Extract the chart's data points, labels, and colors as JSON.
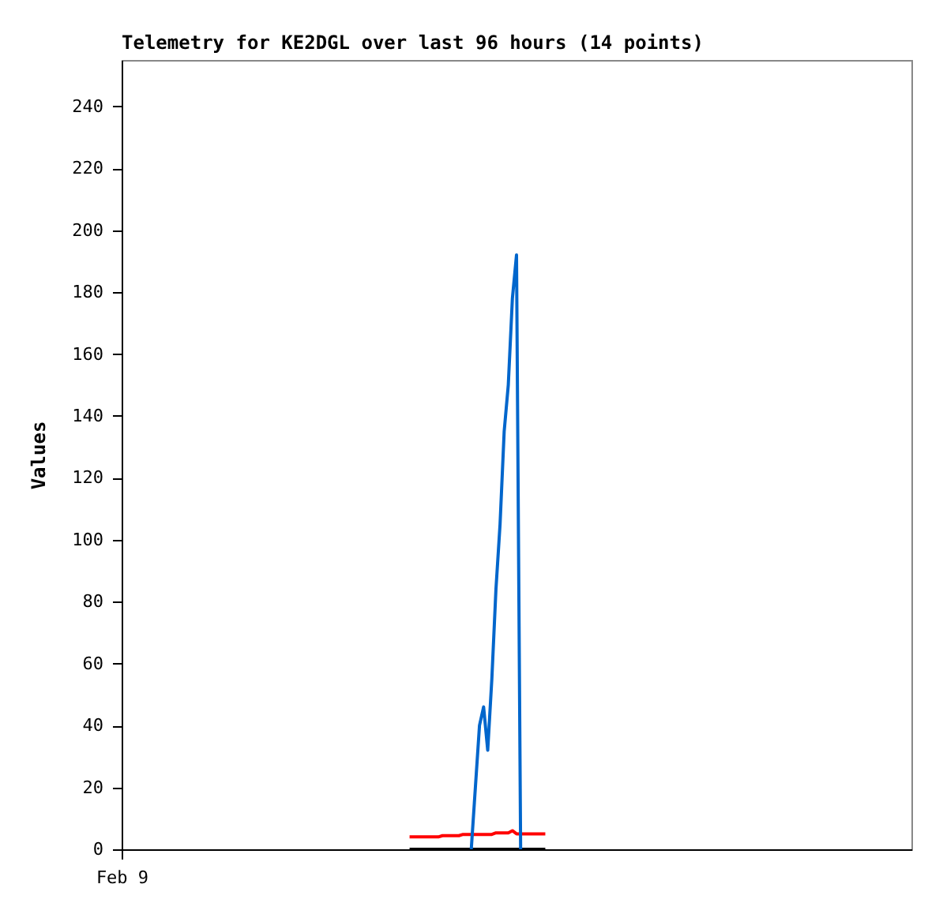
{
  "chart_data": {
    "type": "line",
    "title": "Telemetry for KE2DGL over last 96 hours (14 points)",
    "ylabel": "Values",
    "categories": [
      "Feb 9",
      null,
      null,
      null,
      null,
      null,
      null,
      null,
      null,
      null,
      null,
      null,
      null,
      null,
      null,
      null,
      null,
      null,
      null,
      null,
      null,
      null,
      null,
      null,
      null,
      null,
      null,
      null,
      null,
      null,
      null,
      null,
      null,
      null,
      null,
      null,
      null,
      null,
      null,
      null,
      null,
      null,
      null,
      null,
      null,
      null,
      null,
      null,
      null,
      null,
      null,
      null,
      null,
      null,
      null,
      null,
      null,
      null,
      null,
      null,
      null,
      null,
      null,
      null,
      null,
      null,
      null,
      null,
      null,
      null,
      null,
      null,
      null,
      null,
      null,
      null,
      null,
      null,
      null,
      null,
      null,
      null,
      null,
      null,
      null,
      null,
      null,
      null,
      null,
      null,
      null,
      null,
      null,
      null,
      null,
      null,
      null,
      null,
      null,
      null,
      null,
      null,
      null,
      null,
      null,
      null,
      null,
      null,
      null,
      null,
      null,
      null,
      null,
      null,
      null,
      null,
      null,
      null,
      null,
      null,
      null,
      null,
      null,
      null,
      null,
      null,
      null,
      null,
      null,
      null,
      null,
      null,
      null,
      null,
      null,
      null,
      null,
      null,
      null,
      null,
      null,
      null,
      null,
      null,
      null,
      null,
      null,
      null,
      null,
      null,
      null,
      null,
      null,
      null,
      null,
      null,
      null,
      null,
      null,
      null,
      null,
      null,
      null,
      null,
      null,
      null,
      null,
      null,
      null,
      null,
      null,
      null,
      null,
      null,
      null,
      null,
      null,
      null,
      null,
      null,
      null,
      null,
      null,
      null,
      null,
      null,
      null,
      null,
      null,
      null,
      null,
      null,
      null
    ],
    "ylim": [
      0,
      255
    ],
    "yticks": [
      0,
      20,
      40,
      60,
      80,
      100,
      120,
      140,
      160,
      180,
      200,
      220,
      240
    ],
    "grid": false,
    "line_style": "solid",
    "marker": "none",
    "series": [
      {
        "color": "#000000",
        "values": [
          null,
          null,
          null,
          null,
          null,
          null,
          null,
          null,
          null,
          null,
          null,
          null,
          null,
          null,
          null,
          null,
          null,
          null,
          null,
          null,
          null,
          null,
          null,
          null,
          null,
          null,
          null,
          null,
          null,
          null,
          null,
          null,
          null,
          null,
          null,
          null,
          null,
          null,
          null,
          null,
          null,
          null,
          null,
          null,
          null,
          null,
          null,
          null,
          null,
          null,
          null,
          null,
          null,
          null,
          null,
          null,
          null,
          null,
          null,
          null,
          null,
          null,
          null,
          null,
          null,
          null,
          null,
          null,
          null,
          null,
          0,
          0,
          0,
          0,
          0,
          0,
          0,
          0,
          0,
          0,
          0,
          0,
          0,
          0,
          0,
          0,
          0,
          0,
          0,
          0,
          0,
          0,
          0,
          0,
          0,
          0,
          0,
          0,
          0,
          0,
          0,
          0,
          0,
          0,
          null,
          null,
          null,
          null,
          null,
          null,
          null,
          null,
          null,
          null,
          null,
          null,
          null,
          null,
          null,
          null,
          null,
          null,
          null,
          null,
          null,
          null,
          null,
          null,
          null,
          null,
          null,
          null,
          null,
          null,
          null,
          null,
          null,
          null,
          null,
          null,
          null,
          null,
          null,
          null,
          null,
          null,
          null,
          null,
          null,
          null,
          null,
          null,
          null,
          null,
          null,
          null,
          null,
          null,
          null,
          null,
          null,
          null,
          null,
          null,
          null,
          null,
          null,
          null,
          null,
          null,
          null,
          null,
          null,
          null,
          null,
          null,
          null,
          null,
          null,
          null,
          null,
          null,
          null,
          null,
          null,
          null,
          null,
          null,
          null,
          null,
          null,
          null,
          null
        ]
      },
      {
        "color": "#ff0000",
        "values": [
          null,
          null,
          null,
          null,
          null,
          null,
          null,
          null,
          null,
          null,
          null,
          null,
          null,
          null,
          null,
          null,
          null,
          null,
          null,
          null,
          null,
          null,
          null,
          null,
          null,
          null,
          null,
          null,
          null,
          null,
          null,
          null,
          null,
          null,
          null,
          null,
          null,
          null,
          null,
          null,
          null,
          null,
          null,
          null,
          null,
          null,
          null,
          null,
          null,
          null,
          null,
          null,
          null,
          null,
          null,
          null,
          null,
          null,
          null,
          null,
          null,
          null,
          null,
          null,
          null,
          null,
          null,
          null,
          null,
          null,
          4,
          4,
          4,
          4,
          4,
          4,
          4,
          4,
          4.4,
          4.4,
          4.4,
          4.4,
          4.4,
          4.8,
          4.8,
          4.8,
          4.8,
          4.8,
          4.8,
          4.8,
          4.8,
          5.3,
          5.3,
          5.3,
          5.3,
          6,
          5,
          5,
          5,
          5,
          5,
          5,
          5,
          5,
          null,
          null,
          null,
          null,
          null,
          null,
          null,
          null,
          null,
          null,
          null,
          null,
          null,
          null,
          null,
          null,
          null,
          null,
          null,
          null,
          null,
          null,
          null,
          null,
          null,
          null,
          null,
          null,
          null,
          null,
          null,
          null,
          null,
          null,
          null,
          null,
          null,
          null,
          null,
          null,
          null,
          null,
          null,
          null,
          null,
          null,
          null,
          null,
          null,
          null,
          null,
          null,
          null,
          null,
          null,
          null,
          null,
          null,
          null,
          null,
          null,
          null,
          null,
          null,
          null,
          null,
          null,
          null,
          null,
          null,
          null,
          null,
          null,
          null,
          null,
          null,
          null,
          null,
          null,
          null,
          null,
          null,
          null,
          null,
          null,
          null,
          null,
          null,
          null
        ]
      },
      {
        "color": "#0066cc",
        "values": [
          null,
          null,
          null,
          null,
          null,
          null,
          null,
          null,
          null,
          null,
          null,
          null,
          null,
          null,
          null,
          null,
          null,
          null,
          null,
          null,
          null,
          null,
          null,
          null,
          null,
          null,
          null,
          null,
          null,
          null,
          null,
          null,
          null,
          null,
          null,
          null,
          null,
          null,
          null,
          null,
          null,
          null,
          null,
          null,
          null,
          null,
          null,
          null,
          null,
          null,
          null,
          null,
          null,
          null,
          null,
          null,
          null,
          null,
          null,
          null,
          null,
          null,
          null,
          null,
          null,
          null,
          null,
          null,
          null,
          null,
          null,
          null,
          null,
          null,
          null,
          null,
          null,
          null,
          null,
          null,
          null,
          null,
          null,
          null,
          null,
          0,
          20,
          40,
          46,
          32,
          55,
          84,
          105,
          135,
          150,
          178,
          192,
          0,
          null,
          null,
          null,
          null,
          null,
          null,
          null,
          null,
          null,
          null,
          null,
          null,
          null,
          null,
          null,
          null,
          null,
          null,
          null,
          null,
          null,
          null,
          null,
          null,
          null,
          null,
          null,
          null,
          null,
          null,
          null,
          null,
          null,
          null,
          null,
          null,
          null,
          null,
          null,
          null,
          null,
          null,
          null,
          null,
          null,
          null,
          null,
          null,
          null,
          null,
          null,
          null,
          null,
          null,
          null,
          null,
          null,
          null,
          null,
          null,
          null,
          null,
          null,
          null,
          null,
          null,
          null,
          null,
          null,
          null,
          null,
          null,
          null,
          null,
          null,
          null,
          null,
          null,
          null,
          null,
          null,
          null,
          null,
          null,
          null,
          null,
          null,
          null,
          null,
          null,
          null,
          null,
          null,
          null,
          null
        ]
      }
    ]
  }
}
